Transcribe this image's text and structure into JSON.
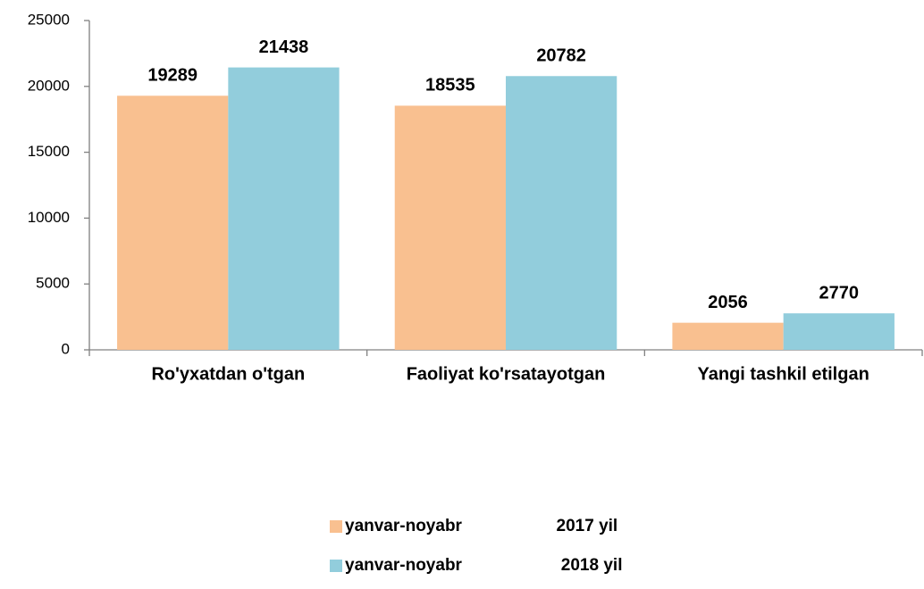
{
  "chart_data": {
    "type": "bar",
    "categories": [
      "Ro'yxatdan o'tgan",
      "Faoliyat ko'rsatayotgan",
      "Yangi tashkil etilgan"
    ],
    "series": [
      {
        "name": "yanvar-noyabr                    2017 yil",
        "color": "#f9c090",
        "values": [
          19289,
          18535,
          2056
        ]
      },
      {
        "name": "yanvar-noyabr                     2018 yil",
        "color": "#92cddc",
        "values": [
          21438,
          20782,
          2770
        ]
      }
    ],
    "ylim": [
      0,
      25000
    ],
    "yticks": [
      0,
      5000,
      10000,
      15000,
      20000,
      25000
    ],
    "grid": false
  }
}
